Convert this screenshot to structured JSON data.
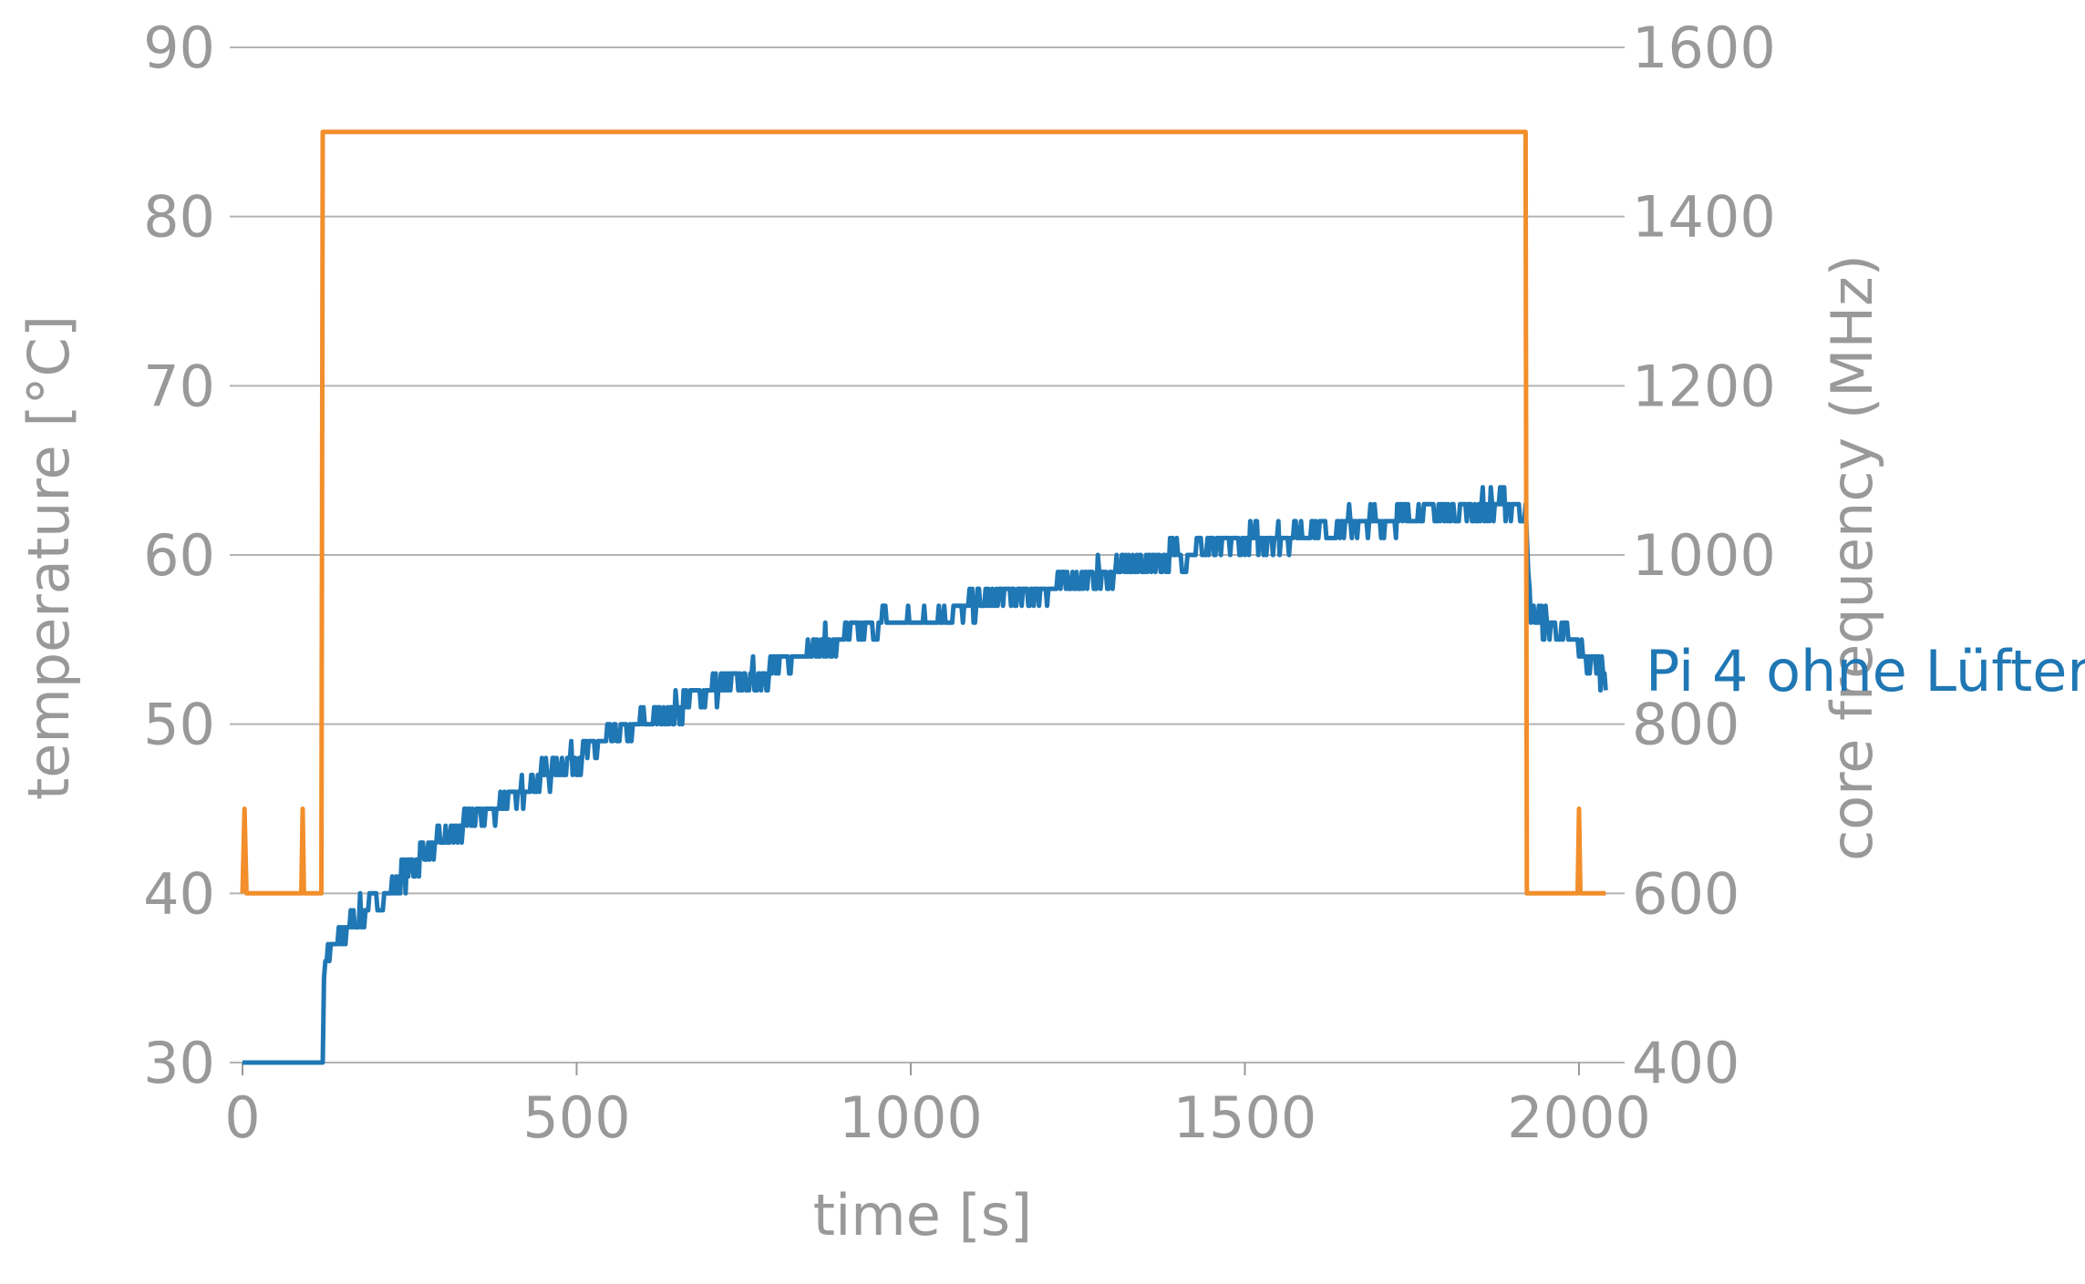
{
  "chart_data": {
    "type": "line",
    "xlabel": "time [s]",
    "ylabel_left": "temperature [°C]",
    "ylabel_right": "core frequency (MHz)",
    "x_ticks": [
      "0",
      "500",
      "1000",
      "1500",
      "2000"
    ],
    "y_left_ticks": [
      "30",
      "40",
      "50",
      "60",
      "70",
      "80",
      "90"
    ],
    "y_right_ticks": [
      "400",
      "600",
      "800",
      "1000",
      "1200",
      "1400",
      "1600"
    ],
    "xlim": [
      0,
      2040
    ],
    "ylim_left": [
      30,
      90
    ],
    "ylim_right": [
      400,
      1600
    ],
    "grid": true,
    "series": [
      {
        "name": "Pi 4 ohne Lüfter",
        "axis": "left",
        "color": "#1f77b4",
        "x": [
          0,
          50,
          85,
          100,
          115,
          120,
          125,
          140,
          160,
          180,
          200,
          230,
          260,
          300,
          350,
          400,
          450,
          500,
          550,
          600,
          650,
          700,
          750,
          800,
          850,
          900,
          950,
          1000,
          1050,
          1100,
          1150,
          1200,
          1250,
          1300,
          1350,
          1400,
          1450,
          1500,
          1550,
          1600,
          1650,
          1700,
          1750,
          1800,
          1850,
          1900,
          1920,
          1925,
          1930,
          1950,
          1980,
          2010,
          2040
        ],
        "y": [
          30,
          30,
          30.5,
          30,
          30.5,
          34,
          36,
          37,
          38,
          39,
          39.5,
          40.5,
          42,
          43,
          44.5,
          45.5,
          47,
          48,
          49,
          50,
          51,
          52,
          52.5,
          53.5,
          54.5,
          55,
          56,
          56,
          56.5,
          57,
          57.5,
          58,
          58.5,
          59,
          59.5,
          60,
          60.5,
          60.8,
          61,
          61.5,
          61.8,
          62,
          62.3,
          62.5,
          62.8,
          63,
          62.5,
          57.5,
          56.5,
          56,
          55,
          54,
          53
        ]
      },
      {
        "name": "core frequency",
        "axis": "right",
        "color": "#f28e2b",
        "x": [
          0,
          3,
          6,
          88,
          90,
          92,
          118,
          120,
          1920,
          1922,
          1998,
          2000,
          2002,
          2040
        ],
        "y": [
          600,
          700,
          600,
          600,
          700,
          600,
          600,
          1500,
          1500,
          600,
          600,
          700,
          600,
          600
        ]
      }
    ]
  }
}
